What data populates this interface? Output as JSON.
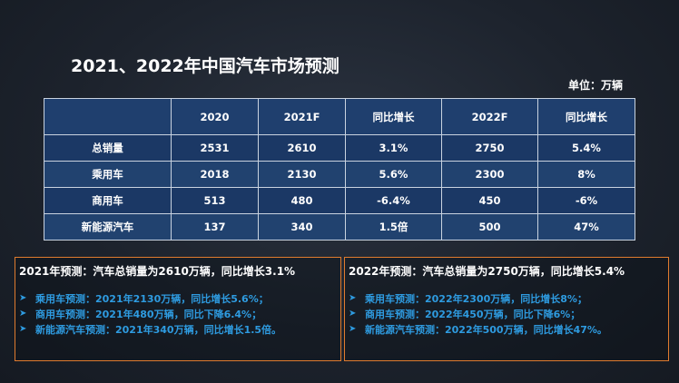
{
  "title": "2021、2022年中国汽车市场预测",
  "unit": "单位：万辆",
  "table": {
    "headers": [
      "",
      "2020",
      "2021F",
      "同比增长",
      "2022F",
      "同比增长"
    ],
    "rows": [
      [
        "总销量",
        "2531",
        "2610",
        "3.1%",
        "2750",
        "5.4%"
      ],
      [
        "乘用车",
        "2018",
        "2130",
        "5.6%",
        "2300",
        "8%"
      ],
      [
        "商用车",
        "513",
        "480",
        "-6.4%",
        "450",
        "-6%"
      ],
      [
        "新能源汽车",
        "137",
        "340",
        "1.5倍",
        "500",
        "47%"
      ]
    ]
  },
  "forecast_2021": {
    "heading": "2021年预测：汽车总销量为2610万辆，同比增长3.1%",
    "items": [
      "乘用车预测：2021年2130万辆，同比增长5.6%；",
      "商用车预测：2021年480万辆，同比下降6.4%；",
      "新能源汽车预测：2021年340万辆，同比增长1.5倍。"
    ]
  },
  "forecast_2022": {
    "heading": "2022年预测：汽车总销量为2750万辆，同比增长5.4%",
    "items": [
      "乘用车预测：2022年2300万辆，同比增长8%；",
      "商用车预测：2022年450万辆，同比下降6%；",
      "新能源汽车预测：2022年500万辆，同比增长47%。"
    ]
  },
  "bullet_icon": "arrowhead-bullet-icon",
  "colors": {
    "accent_blue": "#2e9be0",
    "box_border": "#e07b2e",
    "table_bg": "#1f3f6e"
  }
}
